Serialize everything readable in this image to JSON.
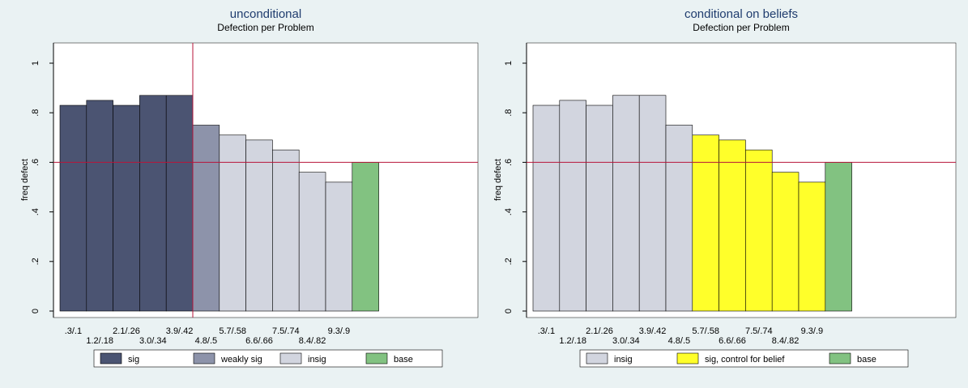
{
  "colors": {
    "background": "#eaf2f3",
    "plot_background": "#ffffff",
    "sig": "#4b5472",
    "weakly_sig": "#8d93aa",
    "insig": "#d2d5df",
    "base": "#82c281",
    "sig_control": "#ffff2a",
    "reference_line": "#b7143a",
    "bar_edge": "#000000"
  },
  "chart_data": [
    {
      "type": "bar",
      "title": "unconditional",
      "subtitle": "Defection per Problem",
      "ylabel": "freq defect",
      "ylim": [
        0,
        1
      ],
      "yticks": [
        0,
        0.2,
        0.4,
        0.6,
        0.8,
        1
      ],
      "ytick_labels": [
        "0",
        ".2",
        ".4",
        ".6",
        ".8",
        "1"
      ],
      "categories": [
        ".3/.1",
        "1.2/.18",
        "2.1/.26",
        "3.0/.34",
        "3.9/.42",
        "4.8/.5",
        "5.7/.58",
        "6.6/.66",
        "7.5/.74",
        "8.4/.82",
        "9.3/.9",
        ""
      ],
      "values": [
        0.83,
        0.85,
        0.83,
        0.87,
        0.87,
        0.75,
        0.71,
        0.69,
        0.65,
        0.56,
        0.52,
        0.6
      ],
      "groups": [
        "sig",
        "sig",
        "sig",
        "sig",
        "sig",
        "weakly_sig",
        "insig",
        "insig",
        "insig",
        "insig",
        "insig",
        "base"
      ],
      "hline": 0.6,
      "vline_after_index": 4,
      "legend": [
        {
          "key": "sig",
          "label": "sig"
        },
        {
          "key": "weakly_sig",
          "label": "weakly sig"
        },
        {
          "key": "insig",
          "label": "insig"
        },
        {
          "key": "base",
          "label": "base"
        }
      ],
      "legend_position": "bottom"
    },
    {
      "type": "bar",
      "title": "conditional on beliefs",
      "subtitle": "Defection per Problem",
      "ylabel": "freq defect",
      "ylim": [
        0,
        1
      ],
      "yticks": [
        0,
        0.2,
        0.4,
        0.6,
        0.8,
        1
      ],
      "ytick_labels": [
        "0",
        ".2",
        ".4",
        ".6",
        ".8",
        "1"
      ],
      "categories": [
        ".3/.1",
        "1.2/.18",
        "2.1/.26",
        "3.0/.34",
        "3.9/.42",
        "4.8/.5",
        "5.7/.58",
        "6.6/.66",
        "7.5/.74",
        "8.4/.82",
        "9.3/.9",
        ""
      ],
      "values": [
        0.83,
        0.85,
        0.83,
        0.87,
        0.87,
        0.75,
        0.71,
        0.69,
        0.65,
        0.56,
        0.52,
        0.6
      ],
      "groups": [
        "insig",
        "insig",
        "insig",
        "insig",
        "insig",
        "insig",
        "sig_control",
        "sig_control",
        "sig_control",
        "sig_control",
        "sig_control",
        "base"
      ],
      "hline": 0.6,
      "legend": [
        {
          "key": "insig",
          "label": "insig"
        },
        {
          "key": "sig_control",
          "label": "sig, control for belief"
        },
        {
          "key": "base",
          "label": "base"
        }
      ],
      "legend_position": "bottom"
    }
  ]
}
